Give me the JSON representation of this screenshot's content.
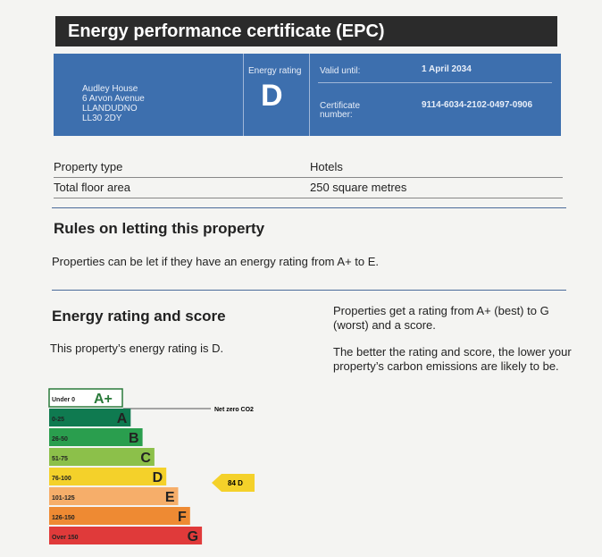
{
  "header": {
    "title": "Energy performance certificate (EPC)"
  },
  "summary": {
    "address": [
      "Audley House",
      "6 Arvon Avenue",
      "LLANDUDNO",
      "LL30 2DY"
    ],
    "energy_rating_label": "Energy rating",
    "energy_rating": "D",
    "valid_until_label": "Valid until:",
    "valid_until": "1 April 2034",
    "certificate_number_label": "Certificate number:",
    "certificate_number": "9114-6034-2102-0497-0906"
  },
  "property": {
    "rows": [
      [
        "Property type",
        "Hotels"
      ],
      [
        "Total floor area",
        "250 square metres"
      ]
    ]
  },
  "rules": {
    "title": "Rules on letting this property",
    "text": "Properties can be let if they have an energy rating from A+ to E."
  },
  "rating": {
    "title": "Energy rating and score",
    "text": "This property’s energy rating is D.",
    "explanation": [
      "Properties get a rating from A+ (best) to G (worst) and a score.",
      "The better the rating and score, the lower your property’s carbon emissions are likely to be."
    ],
    "scale": {
      "net_zero_label": "Net zero CO2",
      "current_label": "84 D",
      "bands": [
        {
          "range": "Under 0",
          "letter": "A+",
          "color": "#ffffff"
        },
        {
          "range": "0-25",
          "letter": "A",
          "color": "#0f7a50"
        },
        {
          "range": "26-50",
          "letter": "B",
          "color": "#2a9e4e"
        },
        {
          "range": "51-75",
          "letter": "C",
          "color": "#8cc04a"
        },
        {
          "range": "76-100",
          "letter": "D",
          "color": "#f4d12a"
        },
        {
          "range": "101-125",
          "letter": "E",
          "color": "#f6ae6a"
        },
        {
          "range": "126-150",
          "letter": "F",
          "color": "#ee8a33"
        },
        {
          "range": "Over 150",
          "letter": "G",
          "color": "#e03a3a"
        }
      ]
    }
  }
}
